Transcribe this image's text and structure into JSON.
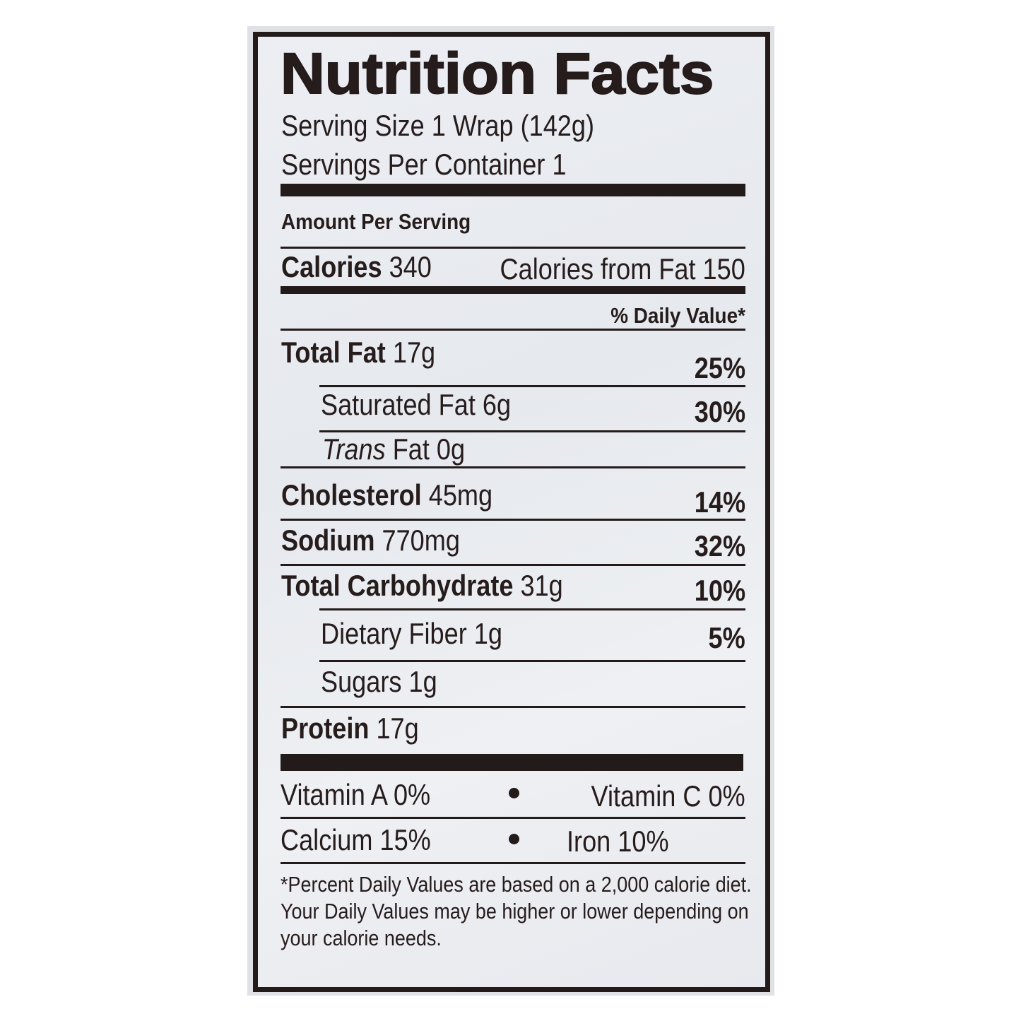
{
  "title": "Nutrition Facts",
  "serving_size": "Serving Size 1 Wrap (142g)",
  "servings_per_container": "Servings Per Container 1",
  "amount_per_serving": "Amount Per Serving",
  "calories": {
    "label": "Calories",
    "value": "340",
    "from_fat": "Calories from Fat 150"
  },
  "daily_value_header": "% Daily Value*",
  "nutrients": [
    {
      "label": "Total Fat",
      "amount": "17g",
      "dv": "25%"
    },
    {
      "label": "Saturated Fat",
      "amount": "6g",
      "dv": "30%"
    },
    {
      "label": "Trans",
      "amount": "Fat 0g",
      "dv": ""
    },
    {
      "label": "Cholesterol",
      "amount": "45mg",
      "dv": "14%"
    },
    {
      "label": "Sodium",
      "amount": "770mg",
      "dv": "32%"
    },
    {
      "label": "Total Carbohydrate",
      "amount": "31g",
      "dv": "10%"
    },
    {
      "label": "Dietary Fiber",
      "amount": "1g",
      "dv": "5%"
    },
    {
      "label": "Sugars",
      "amount": "1g",
      "dv": ""
    },
    {
      "label": "Protein",
      "amount": "17g",
      "dv": ""
    }
  ],
  "vitamins": [
    {
      "left": "Vitamin A 0%",
      "right": "Vitamin C 0%"
    },
    {
      "left": "Calcium 15%",
      "right": "Iron 10%"
    }
  ],
  "footnote": [
    "*Percent Daily Values are based on a 2,000 calorie diet.",
    "Your Daily Values may be higher or lower depending on",
    "your calorie needs."
  ]
}
